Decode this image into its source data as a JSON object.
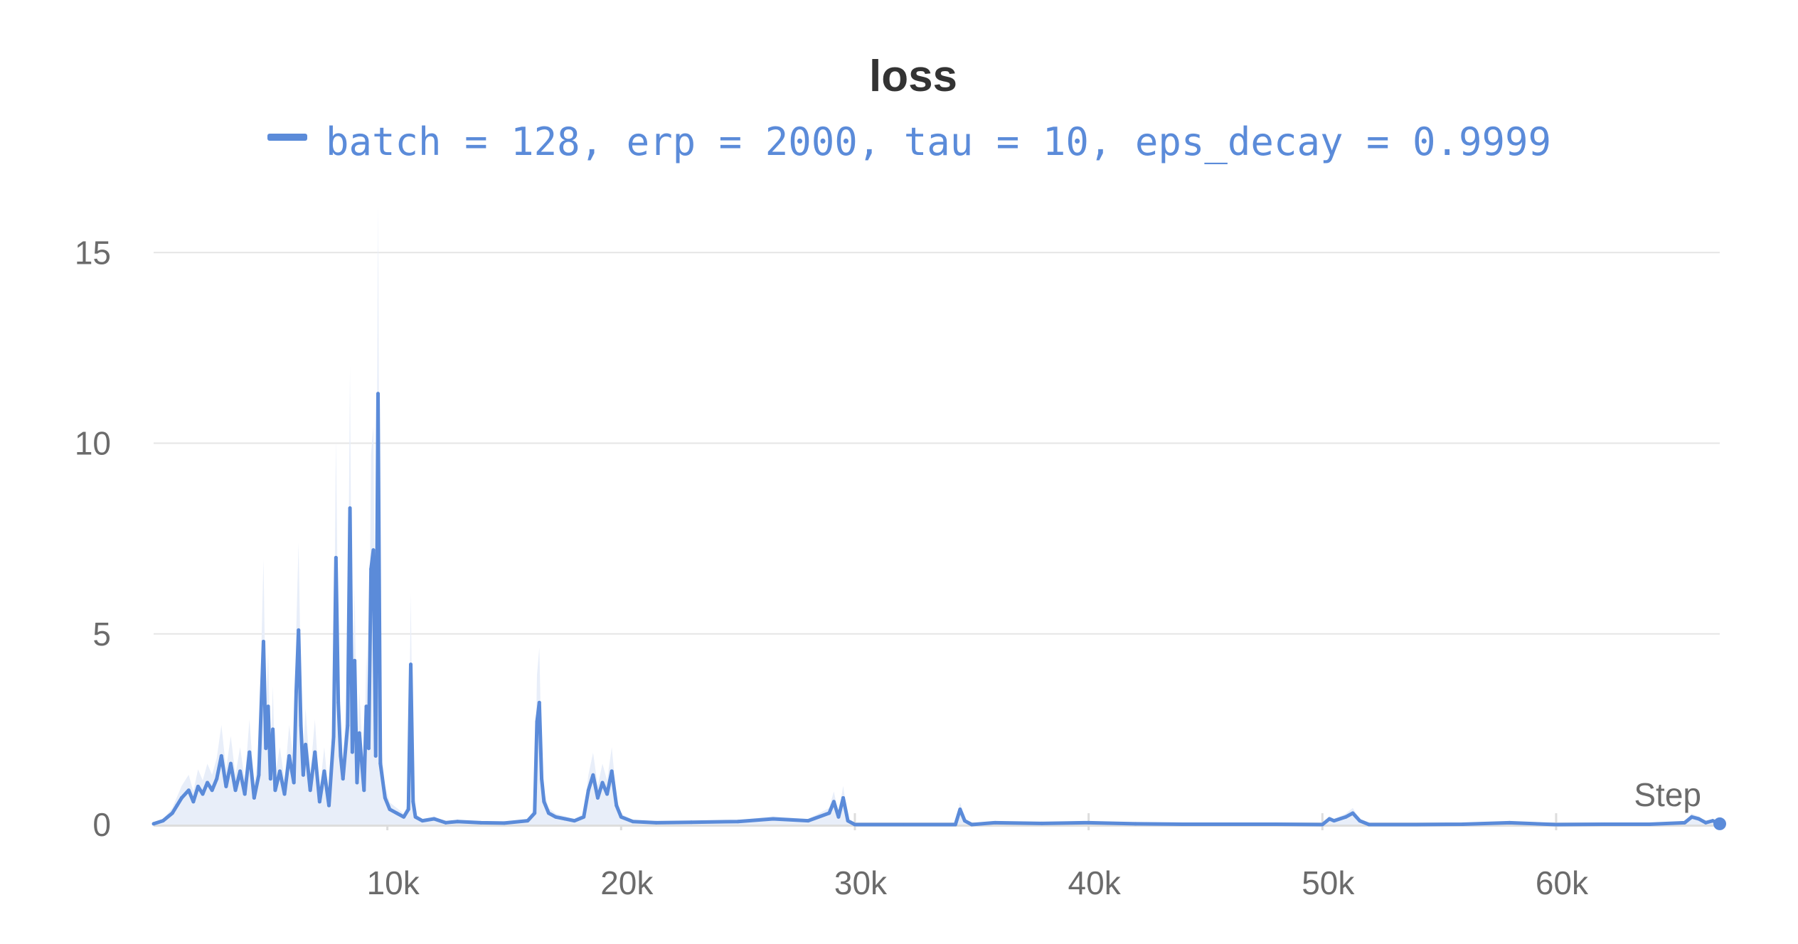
{
  "colors": {
    "series": "#5b8bd9",
    "series_light": "#e8eef9",
    "grid": "#e5e5e5",
    "axis": "#dddddd",
    "text": "#6b6b6b",
    "title": "#333333"
  },
  "chart_data": {
    "type": "line",
    "title": "loss",
    "xlabel": "Step",
    "ylabel": "",
    "xlim": [
      0,
      67000
    ],
    "ylim": [
      0,
      17
    ],
    "grid": true,
    "legend_position": "top-center",
    "x_ticks": [
      10000,
      20000,
      30000,
      40000,
      50000,
      60000
    ],
    "x_tick_labels": [
      "10k",
      "20k",
      "30k",
      "40k",
      "50k",
      "60k"
    ],
    "y_ticks": [
      0,
      5,
      10,
      15
    ],
    "y_tick_labels": [
      "0",
      "5",
      "10",
      "15"
    ],
    "series": [
      {
        "name": "batch = 128, erp = 2000, tau = 10, eps_decay = 0.9999",
        "color": "#5b8bd9",
        "x": [
          0,
          400,
          800,
          1000,
          1200,
          1500,
          1700,
          1900,
          2100,
          2300,
          2500,
          2700,
          2900,
          3100,
          3300,
          3500,
          3700,
          3900,
          4100,
          4300,
          4500,
          4700,
          4800,
          4900,
          5000,
          5100,
          5200,
          5400,
          5600,
          5800,
          6000,
          6100,
          6200,
          6300,
          6400,
          6500,
          6700,
          6900,
          7100,
          7300,
          7500,
          7700,
          7800,
          7900,
          8000,
          8100,
          8300,
          8400,
          8500,
          8600,
          8700,
          8800,
          9000,
          9100,
          9200,
          9300,
          9400,
          9500,
          9600,
          9700,
          9900,
          10100,
          10400,
          10700,
          10900,
          11000,
          11100,
          11200,
          11500,
          12000,
          12500,
          13000,
          14000,
          15000,
          16000,
          16300,
          16400,
          16500,
          16600,
          16700,
          16900,
          17200,
          17600,
          18000,
          18400,
          18600,
          18800,
          19000,
          19200,
          19400,
          19600,
          19800,
          20000,
          20500,
          21500,
          23000,
          25000,
          26500,
          28000,
          28900,
          29100,
          29300,
          29500,
          29700,
          30000,
          32000,
          34300,
          34500,
          34700,
          35000,
          36000,
          38000,
          40000,
          42000,
          44000,
          46000,
          48000,
          50000,
          50300,
          50500,
          51000,
          51300,
          51600,
          52000,
          54000,
          56000,
          58000,
          60000,
          62000,
          64000,
          65500,
          65800,
          66100,
          66400,
          66700,
          67000
        ],
        "values": [
          0.02,
          0.1,
          0.3,
          0.5,
          0.7,
          0.9,
          0.6,
          1.0,
          0.8,
          1.1,
          0.9,
          1.2,
          1.8,
          1.0,
          1.6,
          0.9,
          1.4,
          0.8,
          1.9,
          0.7,
          1.3,
          4.8,
          2.0,
          3.1,
          1.2,
          2.5,
          0.9,
          1.4,
          0.8,
          1.8,
          1.1,
          3.5,
          5.1,
          2.6,
          1.3,
          2.1,
          0.9,
          1.9,
          0.6,
          1.4,
          0.5,
          2.3,
          7.0,
          3.2,
          1.8,
          1.2,
          2.6,
          8.3,
          1.9,
          4.3,
          1.1,
          2.4,
          0.9,
          3.1,
          2.0,
          6.7,
          7.2,
          1.8,
          11.3,
          1.6,
          0.7,
          0.4,
          0.3,
          0.2,
          0.4,
          4.2,
          0.6,
          0.2,
          0.1,
          0.15,
          0.05,
          0.08,
          0.05,
          0.04,
          0.1,
          0.3,
          2.7,
          3.2,
          1.2,
          0.6,
          0.3,
          0.2,
          0.15,
          0.1,
          0.2,
          0.9,
          1.3,
          0.7,
          1.1,
          0.8,
          1.4,
          0.5,
          0.2,
          0.08,
          0.05,
          0.06,
          0.08,
          0.15,
          0.1,
          0.3,
          0.6,
          0.2,
          0.7,
          0.1,
          0.0,
          0.0,
          0.0,
          0.4,
          0.1,
          0.0,
          0.05,
          0.03,
          0.05,
          0.02,
          0.01,
          0.01,
          0.01,
          0.0,
          0.15,
          0.1,
          0.2,
          0.3,
          0.1,
          0.0,
          0.0,
          0.01,
          0.05,
          0.0,
          0.01,
          0.01,
          0.05,
          0.2,
          0.15,
          0.05,
          0.1,
          0.02
        ]
      }
    ]
  }
}
